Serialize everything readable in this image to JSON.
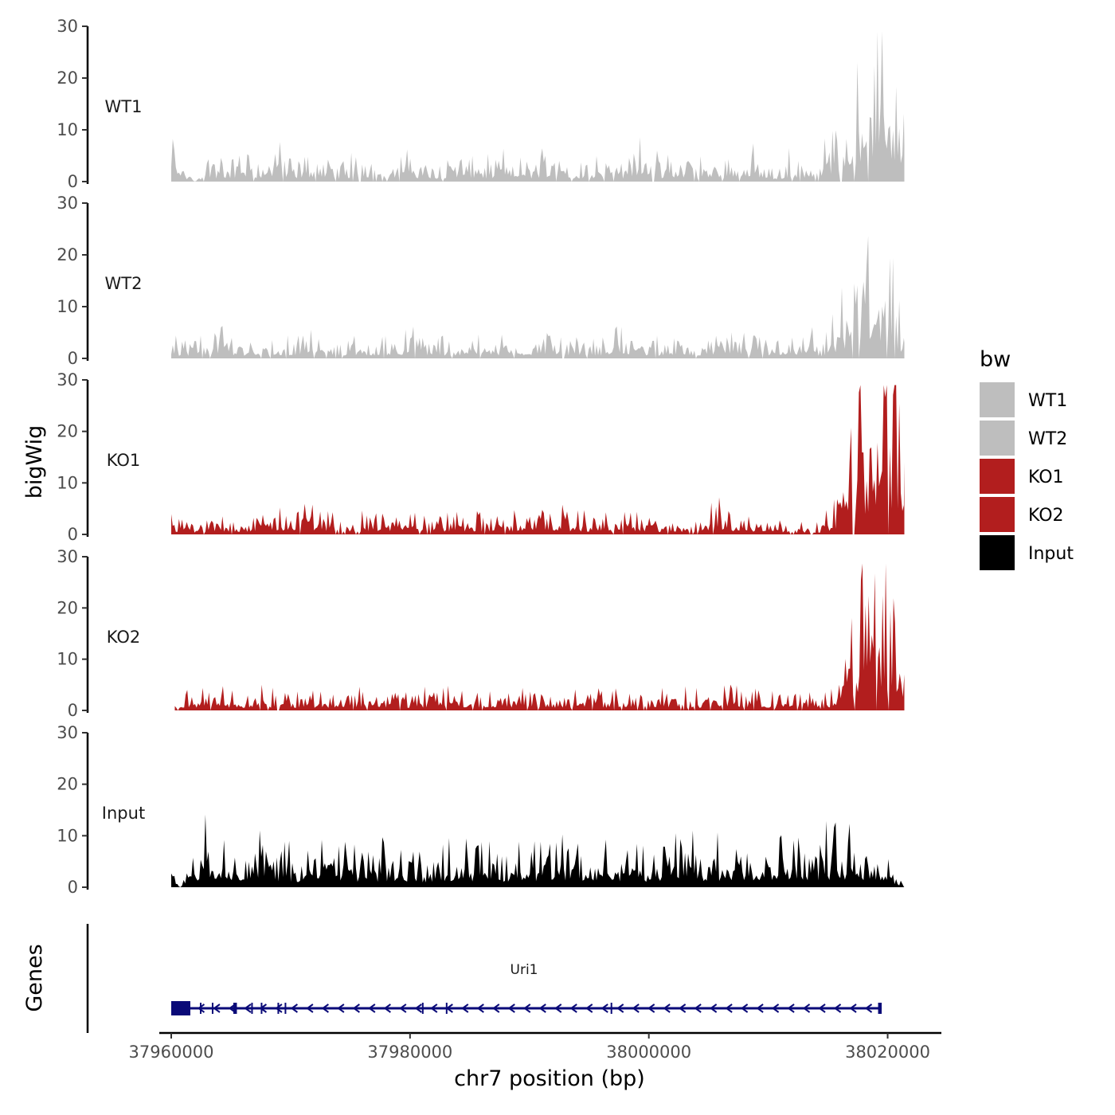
{
  "chart_data": {
    "type": "area",
    "title": "",
    "xlabel": "chr7 position (bp)",
    "ylabel": "bigWig",
    "genes_panel_label": "Genes",
    "xlim": [
      37959000,
      38024500
    ],
    "x_range": [
      37960000,
      38021400
    ],
    "xticks": [
      37960000,
      37980000,
      38000000,
      38020000
    ],
    "xtick_labels": [
      "37960000",
      "37980000",
      "38000000",
      "38020000"
    ],
    "ylim": [
      0,
      30
    ],
    "yticks": [
      0,
      10,
      20,
      30
    ],
    "ytick_labels": [
      "0",
      "10",
      "20",
      "30"
    ],
    "legend": {
      "title": "bw",
      "position": "right",
      "entries": [
        {
          "label": "WT1",
          "color": "#bebebe"
        },
        {
          "label": "WT2",
          "color": "#bebebe"
        },
        {
          "label": "KO1",
          "color": "#b21e1e"
        },
        {
          "label": "KO2",
          "color": "#b21e1e"
        },
        {
          "label": "Input",
          "color": "#000000"
        }
      ]
    },
    "series": [
      {
        "name": "WT1",
        "color": "#bebebe",
        "points": [
          [
            37960000,
            4
          ],
          [
            37961000,
            2
          ],
          [
            37962000,
            0
          ],
          [
            37963000,
            3
          ],
          [
            37964000,
            2
          ],
          [
            37966000,
            3
          ],
          [
            37968000,
            2
          ],
          [
            37969000,
            5
          ],
          [
            37970000,
            2
          ],
          [
            37972000,
            3
          ],
          [
            37974000,
            2
          ],
          [
            37976000,
            3
          ],
          [
            37978000,
            2
          ],
          [
            37980000,
            3
          ],
          [
            37982000,
            2
          ],
          [
            37984000,
            3
          ],
          [
            37986000,
            2
          ],
          [
            37988000,
            3
          ],
          [
            37990000,
            2
          ],
          [
            37992000,
            4
          ],
          [
            37994000,
            2
          ],
          [
            37996000,
            3
          ],
          [
            37998000,
            2
          ],
          [
            37999500,
            6
          ],
          [
            38001000,
            2
          ],
          [
            38003000,
            3
          ],
          [
            38005000,
            2
          ],
          [
            38007000,
            3
          ],
          [
            38009000,
            3
          ],
          [
            38010500,
            1
          ],
          [
            38012000,
            3
          ],
          [
            38014000,
            2
          ],
          [
            38015500,
            6
          ],
          [
            38016500,
            12
          ],
          [
            38017500,
            14
          ],
          [
            38018500,
            15
          ],
          [
            38019500,
            17
          ],
          [
            38020500,
            12
          ],
          [
            38021400,
            7
          ]
        ]
      },
      {
        "name": "WT2",
        "color": "#bebebe",
        "points": [
          [
            37960000,
            2
          ],
          [
            37961000,
            2
          ],
          [
            37962500,
            2
          ],
          [
            37964000,
            3
          ],
          [
            37966000,
            2
          ],
          [
            37968000,
            2
          ],
          [
            37970000,
            2
          ],
          [
            37972000,
            3
          ],
          [
            37974000,
            2
          ],
          [
            37976000,
            2
          ],
          [
            37978000,
            2
          ],
          [
            37980000,
            3
          ],
          [
            37982000,
            2
          ],
          [
            37984000,
            2
          ],
          [
            37986000,
            3
          ],
          [
            37988000,
            2
          ],
          [
            37990000,
            2
          ],
          [
            37992000,
            3
          ],
          [
            37994000,
            2
          ],
          [
            37996000,
            2
          ],
          [
            37998000,
            3
          ],
          [
            38000000,
            2
          ],
          [
            38002000,
            2
          ],
          [
            38004000,
            2
          ],
          [
            38006000,
            3
          ],
          [
            38008000,
            2
          ],
          [
            38010000,
            2
          ],
          [
            38012000,
            2
          ],
          [
            38013500,
            3
          ],
          [
            38014500,
            1
          ],
          [
            38015500,
            4
          ],
          [
            38016500,
            7
          ],
          [
            38017500,
            9
          ],
          [
            38018500,
            11
          ],
          [
            38019500,
            12
          ],
          [
            38020500,
            8
          ],
          [
            38021400,
            3
          ]
        ]
      },
      {
        "name": "KO1",
        "color": "#b21e1e",
        "points": [
          [
            37960000,
            2
          ],
          [
            37961000,
            2
          ],
          [
            37962000,
            1
          ],
          [
            37964000,
            2
          ],
          [
            37966000,
            2
          ],
          [
            37968000,
            2
          ],
          [
            37970000,
            3
          ],
          [
            37972000,
            3
          ],
          [
            37974000,
            2
          ],
          [
            37976000,
            2
          ],
          [
            37978000,
            2
          ],
          [
            37980000,
            3
          ],
          [
            37982000,
            2
          ],
          [
            37984000,
            2
          ],
          [
            37986000,
            2
          ],
          [
            37988000,
            2
          ],
          [
            37990000,
            2
          ],
          [
            37992000,
            3
          ],
          [
            37994000,
            2
          ],
          [
            37996000,
            2
          ],
          [
            37998000,
            2
          ],
          [
            38000000,
            2
          ],
          [
            38002000,
            1
          ],
          [
            38004000,
            2
          ],
          [
            38006000,
            3
          ],
          [
            38008000,
            2
          ],
          [
            38010000,
            2
          ],
          [
            38012000,
            1
          ],
          [
            38014000,
            1
          ],
          [
            38015500,
            3
          ],
          [
            38016500,
            8
          ],
          [
            38017500,
            13
          ],
          [
            38018500,
            17
          ],
          [
            38019500,
            20
          ],
          [
            38020500,
            18
          ],
          [
            38021400,
            14
          ]
        ]
      },
      {
        "name": "KO2",
        "color": "#b21e1e",
        "points": [
          [
            37960300,
            1
          ],
          [
            37961000,
            2
          ],
          [
            37963000,
            2
          ],
          [
            37965000,
            2
          ],
          [
            37967000,
            2
          ],
          [
            37969000,
            2
          ],
          [
            37971000,
            2
          ],
          [
            37973000,
            2
          ],
          [
            37975000,
            2
          ],
          [
            37977000,
            2
          ],
          [
            37979000,
            2
          ],
          [
            37981000,
            2
          ],
          [
            37983000,
            3
          ],
          [
            37985000,
            2
          ],
          [
            37987000,
            2
          ],
          [
            37989000,
            2
          ],
          [
            37991000,
            2
          ],
          [
            37993000,
            2
          ],
          [
            37995000,
            2
          ],
          [
            37997000,
            2
          ],
          [
            37999000,
            2
          ],
          [
            38001000,
            2
          ],
          [
            38003000,
            2
          ],
          [
            38005000,
            2
          ],
          [
            38007000,
            3
          ],
          [
            38009000,
            2
          ],
          [
            38011000,
            2
          ],
          [
            38013000,
            2
          ],
          [
            38014500,
            1
          ],
          [
            38015500,
            3
          ],
          [
            38016500,
            9
          ],
          [
            38017500,
            13
          ],
          [
            38018500,
            15
          ],
          [
            38019500,
            15
          ],
          [
            38020500,
            11
          ],
          [
            38021400,
            7
          ]
        ]
      },
      {
        "name": "Input",
        "color": "#000000",
        "points": [
          [
            37960000,
            3
          ],
          [
            37960800,
            0
          ],
          [
            37962000,
            5
          ],
          [
            37964000,
            6
          ],
          [
            37966000,
            5
          ],
          [
            37968000,
            5
          ],
          [
            37970000,
            4
          ],
          [
            37972000,
            4
          ],
          [
            37974000,
            5
          ],
          [
            37976000,
            4
          ],
          [
            37978000,
            4
          ],
          [
            37980000,
            3
          ],
          [
            37982000,
            4
          ],
          [
            37984000,
            5
          ],
          [
            37986000,
            4
          ],
          [
            37988000,
            4
          ],
          [
            37990000,
            4
          ],
          [
            37992000,
            5
          ],
          [
            37994000,
            4
          ],
          [
            37996000,
            5
          ],
          [
            37998000,
            4
          ],
          [
            38000000,
            4
          ],
          [
            38002000,
            5
          ],
          [
            38004000,
            5
          ],
          [
            38006000,
            4
          ],
          [
            38008000,
            5
          ],
          [
            38010000,
            5
          ],
          [
            38012000,
            6
          ],
          [
            38014000,
            5
          ],
          [
            38016000,
            6
          ],
          [
            38018000,
            5
          ],
          [
            38020000,
            4
          ],
          [
            38021400,
            0
          ]
        ]
      }
    ],
    "gene": {
      "name": "Uri1",
      "start": 37960000,
      "end": 38019500,
      "strand": "-",
      "exons": [
        [
          37960000,
          37961600
        ],
        [
          37962400,
          37962500
        ],
        [
          37963400,
          37963500
        ],
        [
          37965200,
          37965500
        ],
        [
          37966700,
          37966800
        ],
        [
          37967500,
          37967600
        ],
        [
          37968900,
          37969000
        ],
        [
          37969500,
          37969600
        ],
        [
          37981000,
          37981100
        ],
        [
          37983000,
          37983100
        ],
        [
          37996800,
          37996900
        ],
        [
          38019200,
          38019500
        ]
      ]
    }
  }
}
